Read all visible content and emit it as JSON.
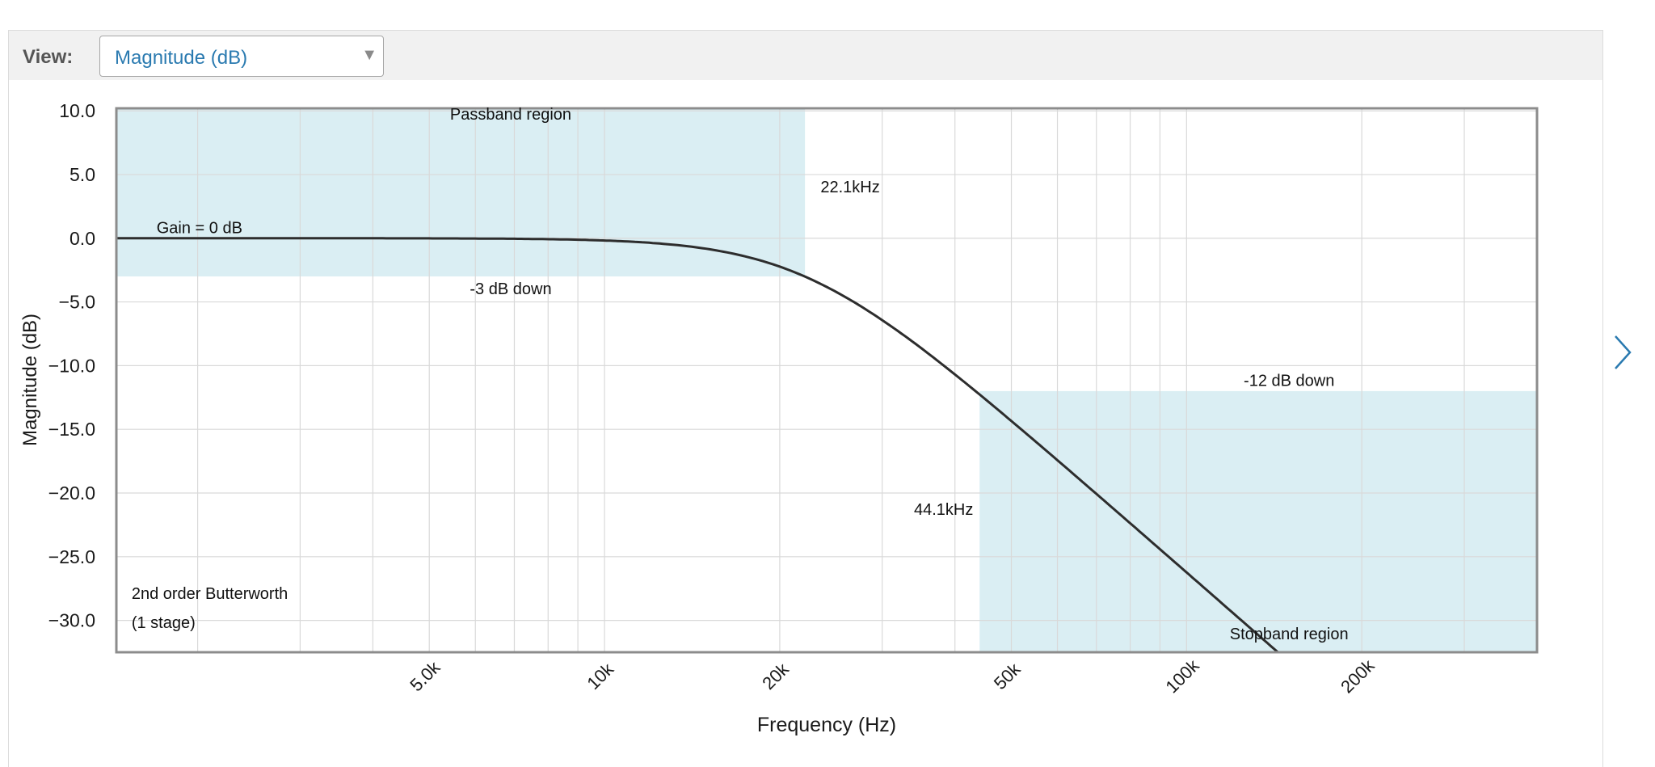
{
  "toolbar": {
    "view_label": "View:",
    "select_value": "Magnitude (dB)",
    "select_arrow": "▼"
  },
  "colors": {
    "band_fill": "#daeef3",
    "curve": "#2d2d2d",
    "grid": "#d9d9d9",
    "frame": "#8c8c8c",
    "accent": "#2a7ab0"
  },
  "icons": {
    "dropdown": "triangle-down-icon",
    "next": "chevron-right-icon"
  },
  "chart_data": {
    "type": "line",
    "x_scale": "log",
    "xlabel": "Frequency (Hz)",
    "ylabel": "Magnitude (dB)",
    "xlim": [
      1450,
      400000
    ],
    "ylim": [
      -32.5,
      10.2
    ],
    "x_ticks": [
      {
        "value": 5000,
        "label": "5.0k"
      },
      {
        "value": 10000,
        "label": "10k"
      },
      {
        "value": 20000,
        "label": "20k"
      },
      {
        "value": 50000,
        "label": "50k"
      },
      {
        "value": 100000,
        "label": "100k"
      },
      {
        "value": 200000,
        "label": "200k"
      }
    ],
    "y_ticks": [
      {
        "value": 10,
        "label": "10.0"
      },
      {
        "value": 5,
        "label": "5.0"
      },
      {
        "value": 0,
        "label": "0.0"
      },
      {
        "value": -5,
        "label": "−5.0"
      },
      {
        "value": -10,
        "label": "−10.0"
      },
      {
        "value": -15,
        "label": "−15.0"
      },
      {
        "value": -20,
        "label": "−20.0"
      },
      {
        "value": -25,
        "label": "−25.0"
      },
      {
        "value": -30,
        "label": "−30.0"
      }
    ],
    "grid": true,
    "series": [
      {
        "filter": "butterworth-lowpass",
        "order": 2,
        "cutoff_hz": 22100,
        "gain_db": 0
      }
    ],
    "regions": [
      {
        "label": "Passband region",
        "x_from": 1450,
        "x_to": 22100,
        "y_from": -3,
        "y_to": 10.2
      },
      {
        "label": "Stopband region",
        "x_from": 44100,
        "x_to": 400000,
        "y_from": -32.5,
        "y_to": -12
      }
    ],
    "annotations": [
      {
        "text": "Passband region",
        "x": 6900,
        "y": 9.3
      },
      {
        "text": "22.1kHz",
        "x": 23500,
        "y": 3.6
      },
      {
        "text": "Gain = 0 dB",
        "x": 1700,
        "y": 0.4
      },
      {
        "text": "-3 dB down",
        "x": 6900,
        "y": -4.4
      },
      {
        "text": "-12 dB down",
        "x": 150000,
        "y": -11.6
      },
      {
        "text": "44.1kHz",
        "x": 43000,
        "y": -21.7
      },
      {
        "text": "2nd order Butterworth",
        "x": 1540,
        "y": -28.3
      },
      {
        "text": "(1 stage)",
        "x": 1540,
        "y": -30.6
      },
      {
        "text": "Stopband region",
        "x": 150000,
        "y": -31.5
      }
    ]
  }
}
